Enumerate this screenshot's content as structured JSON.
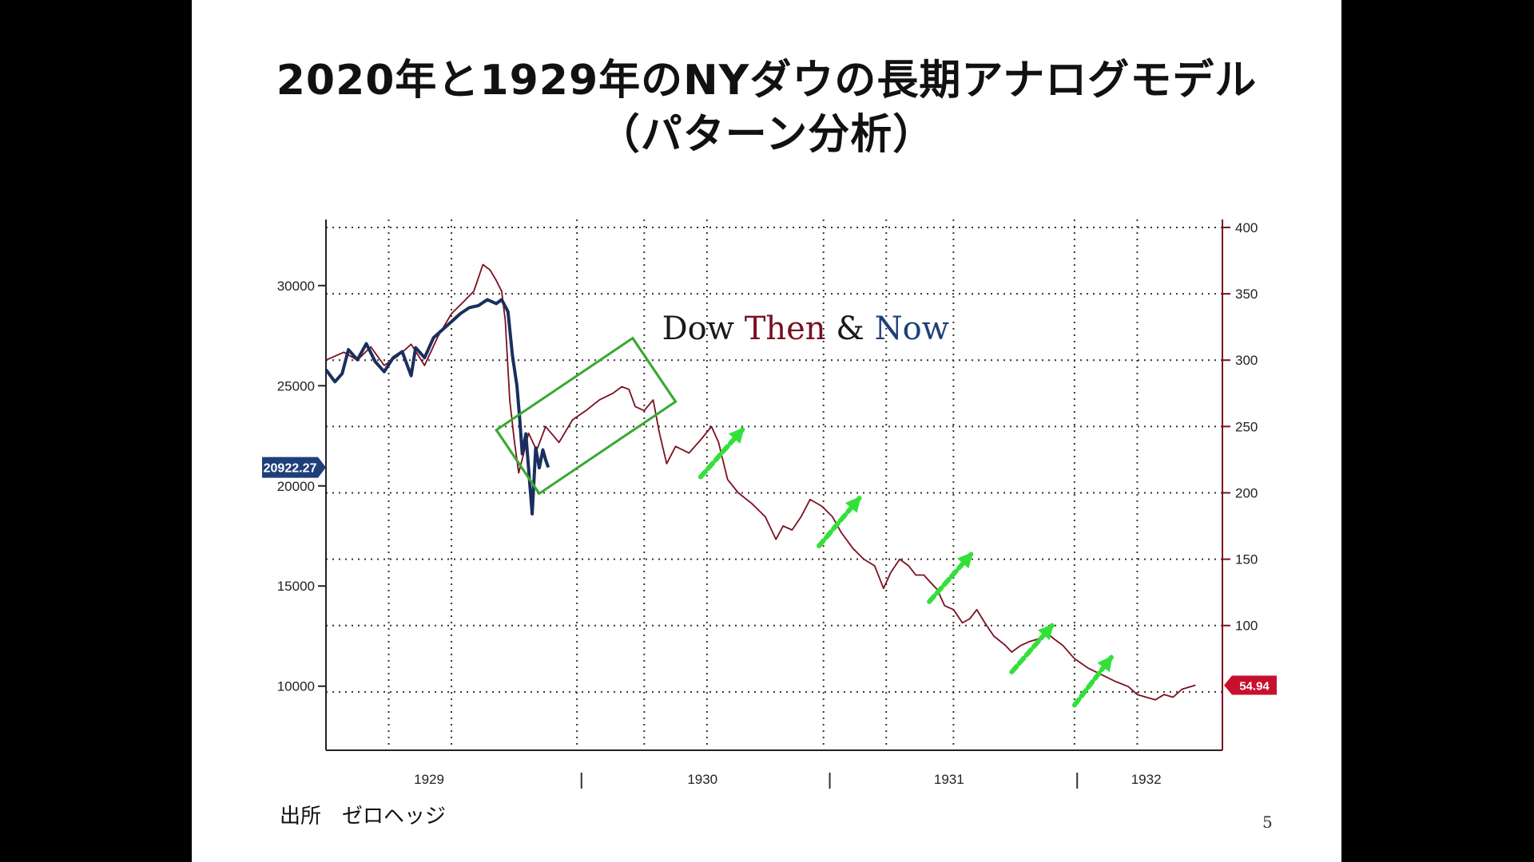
{
  "slide": {
    "title_line1": "2020年と1929年のNYダウの長期アナログモデル",
    "title_line2": "（パターン分析）",
    "source": "出所　ゼロヘッジ",
    "page_number": "5"
  },
  "chart_data": {
    "type": "line",
    "title": "",
    "annotation": {
      "parts": [
        "Dow ",
        "Then",
        " & ",
        "Now"
      ],
      "colors": [
        "#1a1a1a",
        "#7a1020",
        "#1a1a1a",
        "#1f3f7a"
      ]
    },
    "x_ticks": [
      "1929",
      "1930",
      "1931",
      "1932"
    ],
    "left_axis": {
      "ticks": [
        "30000",
        "25000",
        "20000",
        "15000",
        "10000"
      ],
      "ylim": [
        6800,
        33300
      ]
    },
    "right_axis": {
      "ticks": [
        "400",
        "350",
        "300",
        "250",
        "200",
        "150",
        "100"
      ],
      "ylim": [
        6,
        406
      ]
    },
    "last_labels": {
      "now": "20922.27",
      "then": "54.94"
    },
    "series": [
      {
        "axis": "right",
        "color": "#7a1020",
        "points": [
          [
            0.0,
            300
          ],
          [
            0.02,
            306
          ],
          [
            0.035,
            300
          ],
          [
            0.05,
            310
          ],
          [
            0.065,
            296
          ],
          [
            0.08,
            303
          ],
          [
            0.095,
            312
          ],
          [
            0.11,
            296
          ],
          [
            0.125,
            318
          ],
          [
            0.14,
            335
          ],
          [
            0.155,
            345
          ],
          [
            0.165,
            352
          ],
          [
            0.175,
            372
          ],
          [
            0.183,
            368
          ],
          [
            0.19,
            360
          ],
          [
            0.196,
            352
          ],
          [
            0.2,
            330
          ],
          [
            0.205,
            270
          ],
          [
            0.21,
            240
          ],
          [
            0.215,
            215
          ],
          [
            0.22,
            228
          ],
          [
            0.226,
            245
          ],
          [
            0.235,
            232
          ],
          [
            0.245,
            250
          ],
          [
            0.26,
            238
          ],
          [
            0.275,
            255
          ],
          [
            0.29,
            262
          ],
          [
            0.305,
            270
          ],
          [
            0.32,
            275
          ],
          [
            0.33,
            280
          ],
          [
            0.338,
            278
          ],
          [
            0.345,
            265
          ],
          [
            0.355,
            262
          ],
          [
            0.365,
            270
          ],
          [
            0.372,
            245
          ],
          [
            0.38,
            222
          ],
          [
            0.39,
            235
          ],
          [
            0.405,
            230
          ],
          [
            0.418,
            240
          ],
          [
            0.43,
            250
          ],
          [
            0.438,
            238
          ],
          [
            0.448,
            210
          ],
          [
            0.46,
            200
          ],
          [
            0.475,
            192
          ],
          [
            0.49,
            182
          ],
          [
            0.502,
            165
          ],
          [
            0.51,
            175
          ],
          [
            0.52,
            172
          ],
          [
            0.53,
            182
          ],
          [
            0.54,
            195
          ],
          [
            0.553,
            190
          ],
          [
            0.565,
            182
          ],
          [
            0.575,
            170
          ],
          [
            0.588,
            158
          ],
          [
            0.6,
            150
          ],
          [
            0.612,
            145
          ],
          [
            0.622,
            128
          ],
          [
            0.63,
            140
          ],
          [
            0.64,
            150
          ],
          [
            0.65,
            145
          ],
          [
            0.658,
            138
          ],
          [
            0.667,
            138
          ],
          [
            0.675,
            132
          ],
          [
            0.682,
            127
          ],
          [
            0.69,
            115
          ],
          [
            0.7,
            112
          ],
          [
            0.71,
            102
          ],
          [
            0.718,
            105
          ],
          [
            0.726,
            112
          ],
          [
            0.735,
            102
          ],
          [
            0.745,
            92
          ],
          [
            0.758,
            85
          ],
          [
            0.765,
            80
          ],
          [
            0.775,
            85
          ],
          [
            0.785,
            88
          ],
          [
            0.795,
            90
          ],
          [
            0.805,
            94
          ],
          [
            0.812,
            90
          ],
          [
            0.822,
            85
          ],
          [
            0.835,
            75
          ],
          [
            0.85,
            68
          ],
          [
            0.865,
            63
          ],
          [
            0.88,
            58
          ],
          [
            0.895,
            54
          ],
          [
            0.905,
            48
          ],
          [
            0.915,
            46
          ],
          [
            0.925,
            44
          ],
          [
            0.935,
            48
          ],
          [
            0.945,
            46
          ],
          [
            0.955,
            52
          ],
          [
            0.97,
            55
          ]
        ]
      },
      {
        "axis": "left",
        "color": "#1a2f5e",
        "points": [
          [
            0.0,
            25800
          ],
          [
            0.01,
            25200
          ],
          [
            0.018,
            25600
          ],
          [
            0.025,
            26800
          ],
          [
            0.035,
            26300
          ],
          [
            0.045,
            27100
          ],
          [
            0.055,
            26200
          ],
          [
            0.065,
            25700
          ],
          [
            0.075,
            26400
          ],
          [
            0.085,
            26700
          ],
          [
            0.095,
            25500
          ],
          [
            0.1,
            26900
          ],
          [
            0.11,
            26400
          ],
          [
            0.12,
            27400
          ],
          [
            0.13,
            27800
          ],
          [
            0.14,
            28200
          ],
          [
            0.15,
            28600
          ],
          [
            0.16,
            28900
          ],
          [
            0.17,
            29000
          ],
          [
            0.18,
            29300
          ],
          [
            0.19,
            29100
          ],
          [
            0.196,
            29300
          ],
          [
            0.203,
            28700
          ],
          [
            0.208,
            26500
          ],
          [
            0.213,
            25000
          ],
          [
            0.216,
            23400
          ],
          [
            0.219,
            21600
          ],
          [
            0.223,
            22600
          ],
          [
            0.227,
            20300
          ],
          [
            0.23,
            18600
          ],
          [
            0.234,
            21900
          ],
          [
            0.238,
            20900
          ],
          [
            0.242,
            21800
          ],
          [
            0.245,
            21300
          ],
          [
            0.248,
            20922
          ]
        ]
      }
    ],
    "green_box_color": "#3aa832",
    "green_arrow_color": "#33e03a"
  }
}
